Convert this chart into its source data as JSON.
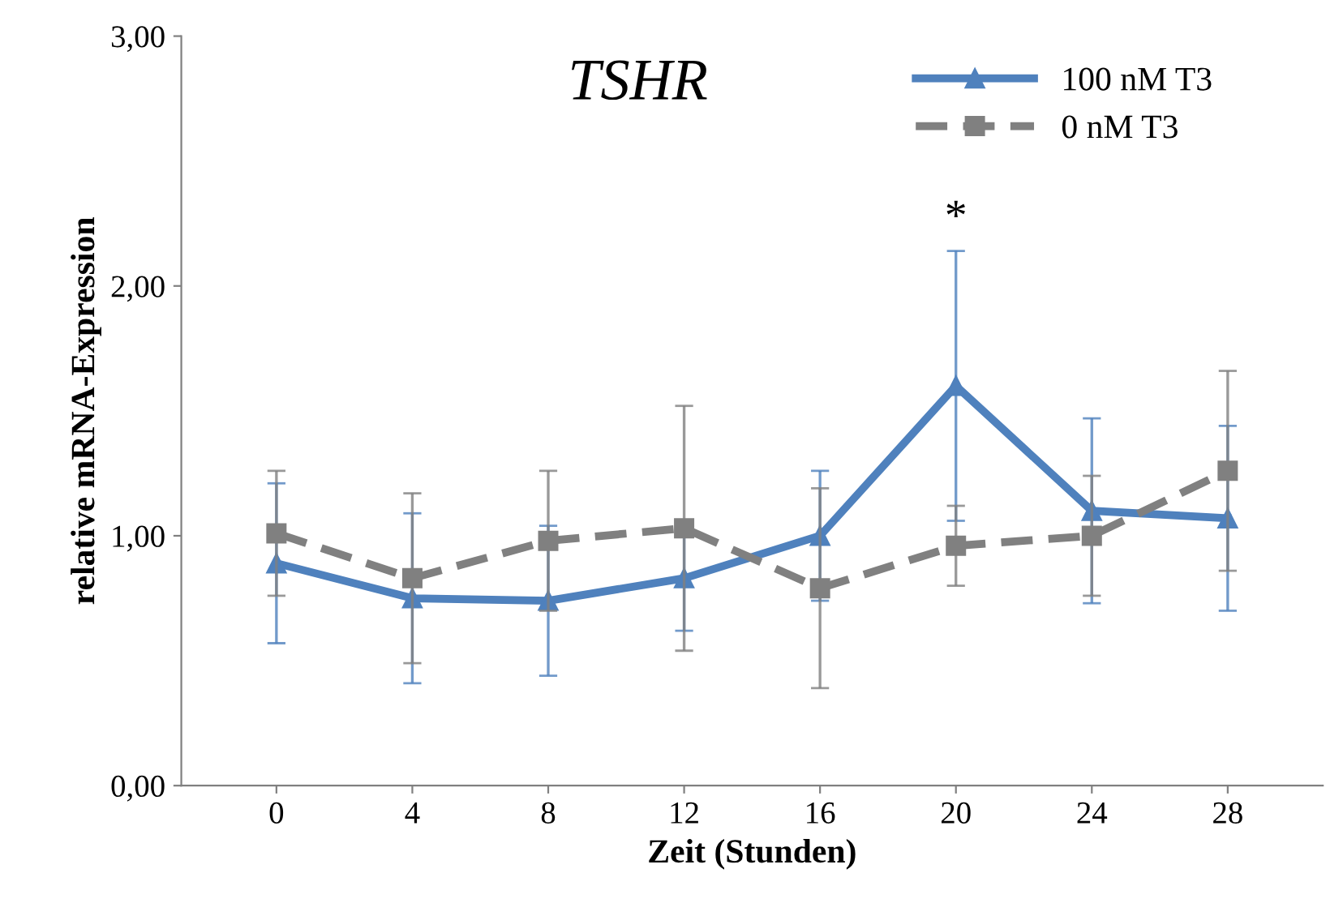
{
  "chart_data": {
    "type": "line",
    "title": "TSHR",
    "xlabel": "Zeit (Stunden)",
    "ylabel": "relative mRNA-Expression",
    "categories": [
      "0",
      "4",
      "8",
      "12",
      "16",
      "20",
      "24",
      "28"
    ],
    "series": [
      {
        "name": "100 nM T3",
        "color": "#4f81bd",
        "marker": "triangle",
        "line_style": "solid",
        "values": [
          0.89,
          0.75,
          0.74,
          0.83,
          1.0,
          1.6,
          1.1,
          1.07
        ],
        "errors": [
          0.32,
          0.34,
          0.3,
          0.21,
          0.26,
          0.54,
          0.37,
          0.37
        ]
      },
      {
        "name": "0 nM T3",
        "color": "#808080",
        "marker": "square",
        "line_style": "dashed",
        "values": [
          1.01,
          0.83,
          0.98,
          1.03,
          0.79,
          0.96,
          1.0,
          1.26
        ],
        "errors": [
          0.25,
          0.34,
          0.28,
          0.49,
          0.4,
          0.16,
          0.24,
          0.4
        ]
      }
    ],
    "ylim": [
      0,
      3
    ],
    "yticks": [
      {
        "value": 0,
        "label": "0,00"
      },
      {
        "value": 1,
        "label": "1,00"
      },
      {
        "value": 2,
        "label": "2,00"
      },
      {
        "value": 3,
        "label": "3,00"
      }
    ],
    "annotations": [
      "*"
    ],
    "grid": false,
    "legend": "top right"
  }
}
